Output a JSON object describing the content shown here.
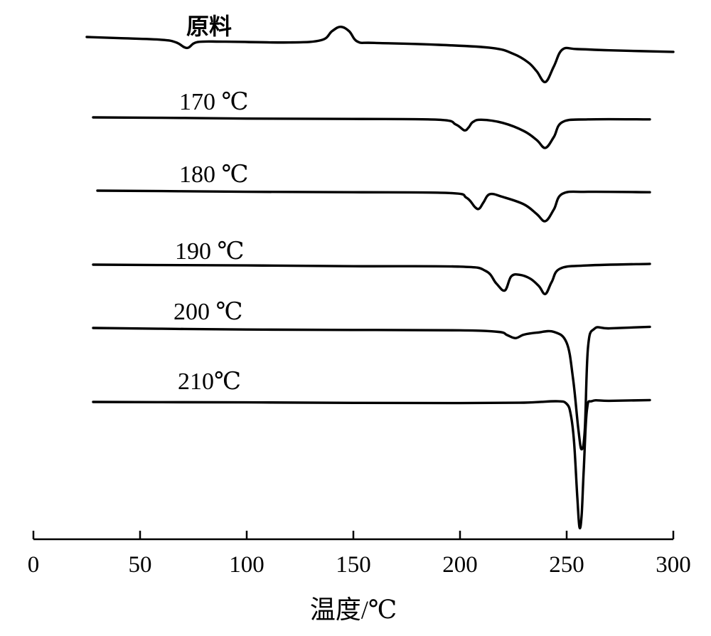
{
  "chart_data": {
    "type": "line",
    "xlabel": "温度/℃",
    "ylabel": "",
    "xlim": [
      0,
      300
    ],
    "xticks": [
      0,
      50,
      100,
      150,
      200,
      250,
      300
    ],
    "y_axis_shown": false,
    "grid": false,
    "series": [
      {
        "name": "原料",
        "x": [
          25,
          40,
          60,
          67,
          72,
          77,
          90,
          120,
          135,
          140,
          144,
          148,
          152,
          160,
          190,
          215,
          225,
          232,
          236,
          240,
          244,
          248,
          255,
          270,
          300
        ],
        "y": [
          0.0,
          -0.3,
          -0.7,
          -1.4,
          -2.8,
          -1.3,
          -1.2,
          -1.4,
          -0.8,
          1.5,
          2.6,
          1.5,
          -1.2,
          -1.5,
          -2.0,
          -2.8,
          -4.3,
          -6.5,
          -8.8,
          -11.5,
          -7.5,
          -3.2,
          -3.1,
          -3.4,
          -3.8
        ]
      },
      {
        "name": "170 ℃",
        "x": [
          28,
          60,
          100,
          150,
          190,
          198,
          202,
          204,
          206,
          210,
          220,
          230,
          236,
          240,
          244,
          248,
          260,
          289
        ],
        "y": [
          0.0,
          -0.1,
          -0.3,
          -0.4,
          -0.6,
          -1.8,
          -3.3,
          -2.6,
          -1.2,
          -0.6,
          -1.4,
          -3.5,
          -5.8,
          -7.8,
          -5.0,
          -1.2,
          -0.5,
          -0.5
        ]
      },
      {
        "name": "180 ℃",
        "x": [
          30,
          60,
          100,
          150,
          195,
          203,
          207,
          209,
          211,
          214,
          220,
          230,
          236,
          240,
          244,
          248,
          260,
          289
        ],
        "y": [
          0.0,
          -0.1,
          -0.3,
          -0.4,
          -0.6,
          -1.8,
          -4.2,
          -4.6,
          -3.0,
          -0.9,
          -1.6,
          -3.5,
          -6.0,
          -7.8,
          -4.8,
          -0.8,
          -0.3,
          -0.4
        ]
      },
      {
        "name": "190 ℃",
        "x": [
          28,
          60,
          100,
          150,
          200,
          212,
          217,
          221,
          224,
          228,
          233,
          237,
          240,
          243,
          247,
          260,
          289
        ],
        "y": [
          0.0,
          -0.1,
          -0.2,
          -0.4,
          -0.5,
          -1.6,
          -4.8,
          -6.6,
          -3.0,
          -2.6,
          -3.6,
          -5.5,
          -7.5,
          -4.4,
          -1.0,
          -0.2,
          0.2
        ]
      },
      {
        "name": "200 ℃",
        "x": [
          28,
          60,
          100,
          150,
          200,
          218,
          222,
          226,
          230,
          236,
          244,
          250,
          253,
          255.5,
          257,
          258.5,
          260,
          263,
          270,
          289
        ],
        "y": [
          0.0,
          -0.2,
          -0.4,
          -0.5,
          -0.6,
          -1.0,
          -1.8,
          -2.6,
          -1.7,
          -1.2,
          -1.0,
          -3.8,
          -13,
          -26,
          -31,
          -26,
          -5.0,
          -0.2,
          -0.1,
          0.3
        ]
      },
      {
        "name": "210℃",
        "x": [
          28,
          60,
          100,
          150,
          200,
          230,
          245,
          250,
          252,
          253.5,
          255,
          256,
          257,
          258,
          259.5,
          262,
          270,
          289
        ],
        "y": [
          0.0,
          -0.1,
          -0.2,
          -0.4,
          -0.5,
          -0.3,
          0.3,
          -0.8,
          -6,
          -18,
          -42,
          -55,
          -50,
          -30,
          -3.5,
          0.4,
          0.5,
          0.8
        ]
      }
    ]
  }
}
